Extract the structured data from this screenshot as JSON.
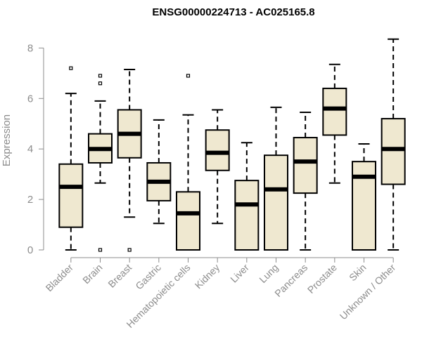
{
  "chart_data": {
    "type": "boxplot",
    "title": "ENSG00000224713 - AC025165.8",
    "xlabel": "",
    "ylabel": "Expression",
    "ylim": [
      0,
      8.4
    ],
    "yticks": [
      0,
      2,
      4,
      6,
      8
    ],
    "grid": false,
    "box_fill": "#efe8d0",
    "line_color": "#000000",
    "axis_color": "#8c8c8c",
    "categories": [
      "Bladder",
      "Brain",
      "Breast",
      "Gastric",
      "Hematopoietic cells",
      "Kidney",
      "Liver",
      "Lung",
      "Pancreas",
      "Prostate",
      "Skin",
      "Unknown / Other"
    ],
    "boxes": [
      {
        "whisker_low": 0.0,
        "q1": 0.9,
        "median": 2.5,
        "q3": 3.4,
        "whisker_high": 6.2,
        "outliers": [
          7.2
        ]
      },
      {
        "whisker_low": 2.65,
        "q1": 3.45,
        "median": 4.0,
        "q3": 4.6,
        "whisker_high": 5.9,
        "outliers": [
          6.9,
          6.6,
          0.0
        ]
      },
      {
        "whisker_low": 1.3,
        "q1": 3.65,
        "median": 4.6,
        "q3": 5.55,
        "whisker_high": 7.15,
        "outliers": [
          0.0
        ]
      },
      {
        "whisker_low": 1.05,
        "q1": 1.95,
        "median": 2.7,
        "q3": 3.45,
        "whisker_high": 5.15,
        "outliers": []
      },
      {
        "whisker_low": 0.0,
        "q1": 0.0,
        "median": 1.45,
        "q3": 2.3,
        "whisker_high": 5.35,
        "outliers": [
          6.9
        ]
      },
      {
        "whisker_low": 1.05,
        "q1": 3.15,
        "median": 3.85,
        "q3": 4.75,
        "whisker_high": 5.55,
        "outliers": []
      },
      {
        "whisker_low": 0.0,
        "q1": 0.0,
        "median": 1.8,
        "q3": 2.75,
        "whisker_high": 4.25,
        "outliers": []
      },
      {
        "whisker_low": 0.0,
        "q1": 0.0,
        "median": 2.4,
        "q3": 3.75,
        "whisker_high": 5.65,
        "outliers": []
      },
      {
        "whisker_low": 0.0,
        "q1": 2.25,
        "median": 3.5,
        "q3": 4.45,
        "whisker_high": 5.45,
        "outliers": []
      },
      {
        "whisker_low": 2.65,
        "q1": 4.55,
        "median": 5.6,
        "q3": 6.4,
        "whisker_high": 7.35,
        "outliers": []
      },
      {
        "whisker_low": 0.0,
        "q1": 0.0,
        "median": 2.9,
        "q3": 3.5,
        "whisker_high": 4.2,
        "outliers": []
      },
      {
        "whisker_low": 0.0,
        "q1": 2.6,
        "median": 4.0,
        "q3": 5.2,
        "whisker_high": 8.35,
        "outliers": []
      }
    ]
  }
}
